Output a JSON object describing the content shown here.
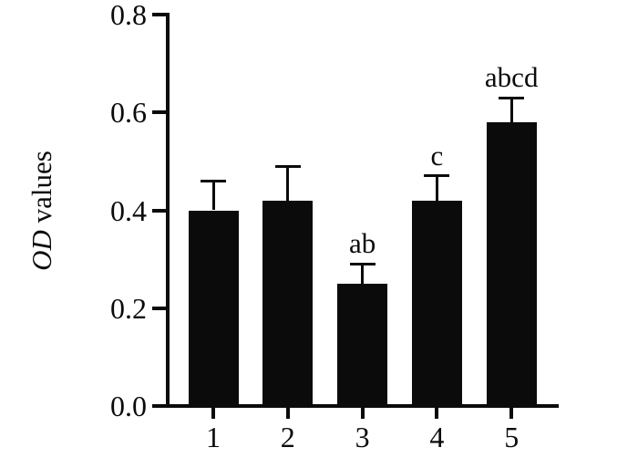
{
  "figure": {
    "background": "#ffffff",
    "ink_color": "#0b0b0b"
  },
  "chart_data": {
    "type": "bar",
    "title": "",
    "xlabel": "",
    "ylabel": "OD values",
    "ylabel_italic_part": "OD",
    "ylabel_regular_part": " values",
    "categories": [
      "1",
      "2",
      "3",
      "4",
      "5"
    ],
    "values": [
      0.4,
      0.42,
      0.25,
      0.42,
      0.58
    ],
    "errors_upper": [
      0.06,
      0.07,
      0.04,
      0.05,
      0.05
    ],
    "annotations": [
      "",
      "",
      "ab",
      "c",
      "abcd"
    ],
    "ylim": [
      0.0,
      0.8
    ],
    "yticks": [
      0.0,
      0.2,
      0.4,
      0.6,
      0.8
    ],
    "ytick_labels": [
      "0.0",
      "0.2",
      "0.4",
      "0.6",
      "0.8"
    ],
    "grid": false,
    "legend": "none",
    "bar_color": "#0b0b0b",
    "error_bar_style": "upper-cap"
  }
}
